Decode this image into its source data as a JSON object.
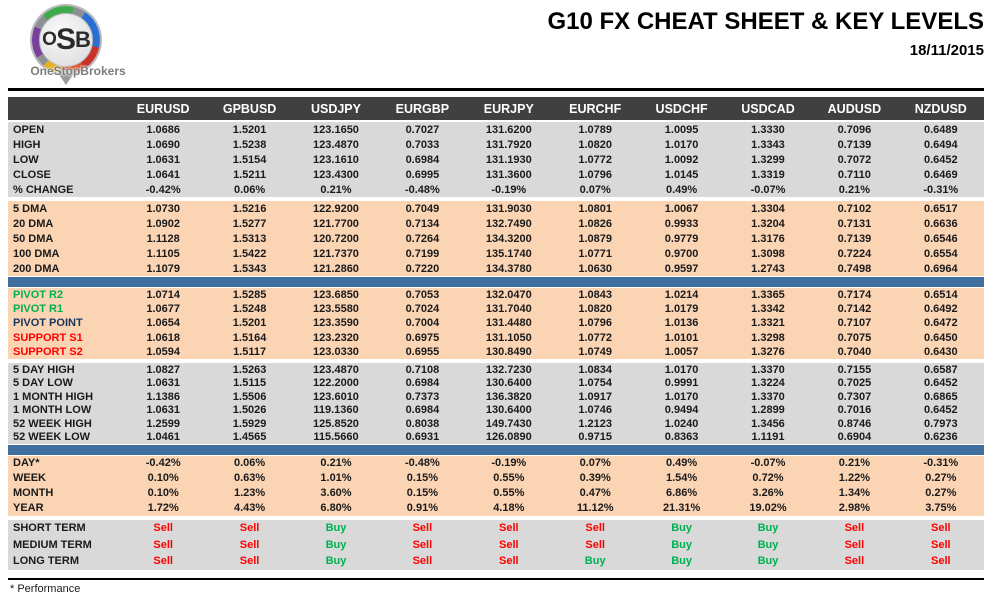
{
  "logo": {
    "letters": [
      "O",
      "S",
      "B"
    ],
    "subtext": "OneStopBrokers"
  },
  "header": {
    "title": "G10 FX CHEAT SHEET & KEY LEVELS",
    "date": "18/11/2015"
  },
  "footer": {
    "note": "* Performance"
  },
  "colors": {
    "header_bg": "#404040",
    "gray_bg": "#d9d9d9",
    "peach_bg": "#fbd4b4",
    "blue_divider": "#3f6d9e",
    "buy_green": "#00b050",
    "sell_red": "#ff0000",
    "pivot_navy": "#17365d"
  },
  "table": {
    "corner_label": "",
    "columns": [
      "EURUSD",
      "GPBUSD",
      "USDJPY",
      "EURGBP",
      "EURJPY",
      "EURCHF",
      "USDCHF",
      "USDCAD",
      "AUDUSD",
      "NZDUSD"
    ],
    "sections": [
      {
        "id": "ohlc",
        "bg": "gray",
        "divider_after": "gap",
        "rows": [
          {
            "label": "OPEN",
            "values": [
              "1.0686",
              "1.5201",
              "123.1650",
              "0.7027",
              "131.6200",
              "1.0789",
              "1.0095",
              "1.3330",
              "0.7096",
              "0.6489"
            ]
          },
          {
            "label": "HIGH",
            "values": [
              "1.0690",
              "1.5238",
              "123.4870",
              "0.7033",
              "131.7920",
              "1.0820",
              "1.0170",
              "1.3343",
              "0.7139",
              "0.6494"
            ]
          },
          {
            "label": "LOW",
            "values": [
              "1.0631",
              "1.5154",
              "123.1610",
              "0.6984",
              "131.1930",
              "1.0772",
              "1.0092",
              "1.3299",
              "0.7072",
              "0.6452"
            ]
          },
          {
            "label": "CLOSE",
            "values": [
              "1.0641",
              "1.5211",
              "123.4300",
              "0.6995",
              "131.3600",
              "1.0796",
              "1.0145",
              "1.3319",
              "0.7110",
              "0.6469"
            ]
          },
          {
            "label": "% CHANGE",
            "values": [
              "-0.42%",
              "0.06%",
              "0.21%",
              "-0.48%",
              "-0.19%",
              "0.07%",
              "0.49%",
              "-0.07%",
              "0.21%",
              "-0.31%"
            ]
          }
        ]
      },
      {
        "id": "dma",
        "bg": "peach",
        "divider_after": "blue",
        "rows": [
          {
            "label": "5 DMA",
            "values": [
              "1.0730",
              "1.5216",
              "122.9200",
              "0.7049",
              "131.9030",
              "1.0801",
              "1.0067",
              "1.3304",
              "0.7102",
              "0.6517"
            ]
          },
          {
            "label": "20 DMA",
            "values": [
              "1.0902",
              "1.5277",
              "121.7700",
              "0.7134",
              "132.7490",
              "1.0826",
              "0.9933",
              "1.3204",
              "0.7131",
              "0.6636"
            ]
          },
          {
            "label": "50 DMA",
            "values": [
              "1.1128",
              "1.5313",
              "120.7200",
              "0.7264",
              "134.3200",
              "1.0879",
              "0.9779",
              "1.3176",
              "0.7139",
              "0.6546"
            ]
          },
          {
            "label": "100 DMA",
            "values": [
              "1.1105",
              "1.5422",
              "121.7370",
              "0.7199",
              "135.1740",
              "1.0771",
              "0.9700",
              "1.3098",
              "0.7224",
              "0.6554"
            ]
          },
          {
            "label": "200 DMA",
            "values": [
              "1.1079",
              "1.5343",
              "121.2860",
              "0.7220",
              "134.3780",
              "1.0630",
              "0.9597",
              "1.2743",
              "0.7498",
              "0.6964"
            ]
          }
        ]
      },
      {
        "id": "pivot",
        "bg": "peach",
        "divider_after": "gap",
        "rows": [
          {
            "label": "PIVOT R2",
            "label_color": "green",
            "values": [
              "1.0714",
              "1.5285",
              "123.6850",
              "0.7053",
              "132.0470",
              "1.0843",
              "1.0214",
              "1.3365",
              "0.7174",
              "0.6514"
            ]
          },
          {
            "label": "PIVOT R1",
            "label_color": "green",
            "values": [
              "1.0677",
              "1.5248",
              "123.5580",
              "0.7024",
              "131.7040",
              "1.0820",
              "1.0179",
              "1.3342",
              "0.7142",
              "0.6492"
            ]
          },
          {
            "label": "PIVOT POINT",
            "label_color": "navy",
            "values": [
              "1.0654",
              "1.5201",
              "123.3590",
              "0.7004",
              "131.4480",
              "1.0796",
              "1.0136",
              "1.3321",
              "0.7107",
              "0.6472"
            ]
          },
          {
            "label": "SUPPORT S1",
            "label_color": "red",
            "values": [
              "1.0618",
              "1.5164",
              "123.2320",
              "0.6975",
              "131.1050",
              "1.0772",
              "1.0101",
              "1.3298",
              "0.7075",
              "0.6450"
            ]
          },
          {
            "label": "SUPPORT S2",
            "label_color": "red",
            "values": [
              "1.0594",
              "1.5117",
              "123.0330",
              "0.6955",
              "130.8490",
              "1.0749",
              "1.0057",
              "1.3276",
              "0.7040",
              "0.6430"
            ]
          }
        ]
      },
      {
        "id": "range",
        "bg": "gray",
        "divider_after": "blue",
        "rows": [
          {
            "label": "5 DAY HIGH",
            "values": [
              "1.0827",
              "1.5263",
              "123.4870",
              "0.7108",
              "132.7230",
              "1.0834",
              "1.0170",
              "1.3370",
              "0.7155",
              "0.6587"
            ]
          },
          {
            "label": "5 DAY LOW",
            "values": [
              "1.0631",
              "1.5115",
              "122.2000",
              "0.6984",
              "130.6400",
              "1.0754",
              "0.9991",
              "1.3224",
              "0.7025",
              "0.6452"
            ]
          },
          {
            "label": "1 MONTH HIGH",
            "values": [
              "1.1386",
              "1.5506",
              "123.6010",
              "0.7373",
              "136.3820",
              "1.0917",
              "1.0170",
              "1.3370",
              "0.7307",
              "0.6865"
            ]
          },
          {
            "label": "1 MONTH LOW",
            "values": [
              "1.0631",
              "1.5026",
              "119.1360",
              "0.6984",
              "130.6400",
              "1.0746",
              "0.9494",
              "1.2899",
              "0.7016",
              "0.6452"
            ]
          },
          {
            "label": "52 WEEK HIGH",
            "values": [
              "1.2599",
              "1.5929",
              "125.8520",
              "0.8038",
              "149.7430",
              "1.2123",
              "1.0240",
              "1.3456",
              "0.8746",
              "0.7973"
            ]
          },
          {
            "label": "52 WEEK LOW",
            "values": [
              "1.0461",
              "1.4565",
              "115.5660",
              "0.6931",
              "126.0890",
              "0.9715",
              "0.8363",
              "1.1191",
              "0.6904",
              "0.6236"
            ]
          }
        ]
      },
      {
        "id": "performance",
        "bg": "peach",
        "divider_after": "gap",
        "rows": [
          {
            "label": "DAY*",
            "values": [
              "-0.42%",
              "0.06%",
              "0.21%",
              "-0.48%",
              "-0.19%",
              "0.07%",
              "0.49%",
              "-0.07%",
              "0.21%",
              "-0.31%"
            ]
          },
          {
            "label": "WEEK",
            "values": [
              "0.10%",
              "0.63%",
              "1.01%",
              "0.15%",
              "0.55%",
              "0.39%",
              "1.54%",
              "0.72%",
              "1.22%",
              "0.27%"
            ]
          },
          {
            "label": "MONTH",
            "values": [
              "0.10%",
              "1.23%",
              "3.60%",
              "0.15%",
              "0.55%",
              "0.47%",
              "6.86%",
              "3.26%",
              "1.34%",
              "0.27%"
            ]
          },
          {
            "label": "YEAR",
            "values": [
              "1.72%",
              "4.43%",
              "6.80%",
              "0.91%",
              "4.18%",
              "11.12%",
              "21.31%",
              "19.02%",
              "2.98%",
              "3.75%"
            ]
          }
        ]
      },
      {
        "id": "trend",
        "bg": "gray",
        "divider_after": "none",
        "rows": [
          {
            "label": "SHORT TERM",
            "values": [
              "Sell",
              "Sell",
              "Buy",
              "Sell",
              "Sell",
              "Sell",
              "Buy",
              "Buy",
              "Sell",
              "Sell"
            ]
          },
          {
            "label": "MEDIUM TERM",
            "values": [
              "Sell",
              "Sell",
              "Buy",
              "Sell",
              "Sell",
              "Sell",
              "Buy",
              "Buy",
              "Sell",
              "Sell"
            ]
          },
          {
            "label": "LONG TERM",
            "values": [
              "Sell",
              "Sell",
              "Buy",
              "Sell",
              "Sell",
              "Buy",
              "Buy",
              "Buy",
              "Sell",
              "Sell"
            ]
          }
        ]
      }
    ]
  }
}
